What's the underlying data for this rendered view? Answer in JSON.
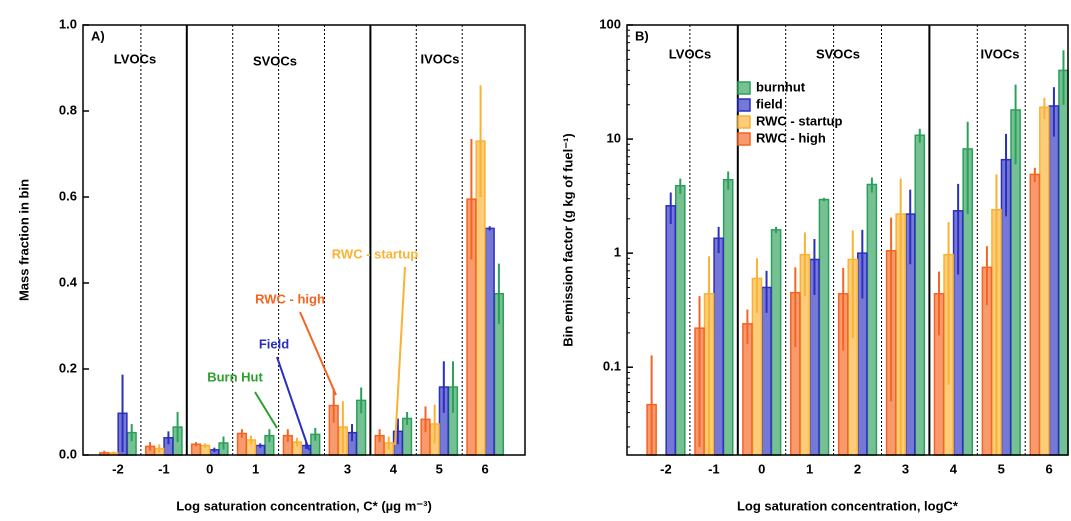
{
  "chart_data": [
    {
      "type": "bar",
      "panel_label": "A)",
      "xlabel": "Log saturation concentration, C* (µg m⁻³)",
      "ylabel": "Mass fraction in bin",
      "categories": [
        "-2",
        "-1",
        "0",
        "1",
        "2",
        "3",
        "4",
        "5",
        "6"
      ],
      "series": [
        {
          "color": "#2ca05a",
          "values": [
            0.052,
            0.065,
            0.028,
            0.045,
            0.048,
            0.127,
            0.085,
            0.158,
            0.375
          ],
          "errors": [
            0.02,
            0.035,
            0.015,
            0.015,
            0.015,
            0.03,
            0.015,
            0.06,
            0.07
          ]
        },
        {
          "color": "#2b2fbf",
          "values": [
            0.097,
            0.04,
            0.012,
            0.022,
            0.022,
            0.052,
            0.055,
            0.158,
            0.527
          ],
          "errors": [
            0.09,
            0.015,
            0.005,
            0.005,
            0.008,
            0.02,
            0.03,
            0.06,
            0.005
          ]
        },
        {
          "color": "#f9b233",
          "values": [
            0.005,
            0.015,
            0.022,
            0.035,
            0.03,
            0.065,
            0.028,
            0.072,
            0.73
          ],
          "errors": [
            0.003,
            0.01,
            0.005,
            0.01,
            0.01,
            0.06,
            0.015,
            0.045,
            0.13
          ]
        },
        {
          "color": "#f26522",
          "values": [
            0.005,
            0.02,
            0.025,
            0.05,
            0.045,
            0.115,
            0.045,
            0.083,
            0.595
          ],
          "errors": [
            0.005,
            0.01,
            0.005,
            0.01,
            0.015,
            0.04,
            0.015,
            0.03,
            0.14
          ]
        }
      ],
      "ylim": [
        0,
        1
      ],
      "yticks": [
        {
          "value": 0,
          "label": "0.0"
        },
        {
          "value": 0.2,
          "label": "0.2"
        },
        {
          "value": 0.4,
          "label": "0.4"
        },
        {
          "value": 0.6,
          "label": "0.6"
        },
        {
          "value": 0.8,
          "label": "0.8"
        },
        {
          "value": 1,
          "label": "1.0"
        }
      ],
      "log_scale": false,
      "class_labels": [
        "LVOCs",
        "SVOCs",
        "IVOCs"
      ],
      "annotations": [
        {
          "text": "Burn Hut",
          "color": "#2ca02c"
        },
        {
          "text": "Field",
          "color": "#2b2fbf"
        },
        {
          "text": "RWC - high",
          "color": "#f26522"
        },
        {
          "text": "RWC - startup",
          "color": "#f9b233"
        }
      ]
    },
    {
      "type": "bar",
      "panel_label": "B)",
      "xlabel": "Log saturation concentration, logC*",
      "ylabel": "Bin emission factor (g kg of fuel⁻¹)",
      "categories": [
        "-2",
        "-1",
        "0",
        "1",
        "2",
        "3",
        "4",
        "5",
        "6"
      ],
      "series": [
        {
          "name": "burnhut",
          "color": "#2ca05a",
          "values": [
            3.9,
            4.4,
            1.6,
            2.95,
            4.0,
            10.8,
            8.2,
            18,
            40
          ],
          "errors": [
            0.6,
            0.8,
            0.1,
            0.1,
            0.6,
            1.5,
            6,
            12,
            20
          ]
        },
        {
          "name": "field",
          "color": "#2b2fbf",
          "values": [
            2.6,
            1.35,
            0.5,
            0.88,
            1.0,
            2.2,
            2.35,
            6.6,
            19.5
          ],
          "errors": [
            0.8,
            0.35,
            0.2,
            0.45,
            0.6,
            1.4,
            1.7,
            4.5,
            9
          ]
        },
        {
          "name": "RWC - startup",
          "color": "#f9b233",
          "values": [
            null,
            0.44,
            0.6,
            0.97,
            0.88,
            2.2,
            0.97,
            2.4,
            19
          ],
          "errors": [
            null,
            0.5,
            0.3,
            0.55,
            0.7,
            2.3,
            0.9,
            2.5,
            4
          ]
        },
        {
          "name": "RWC - high",
          "color": "#f26522",
          "values": [
            0.047,
            0.22,
            0.24,
            0.45,
            0.44,
            1.05,
            0.44,
            0.75,
            4.9
          ],
          "errors": [
            0.08,
            0.2,
            0.08,
            0.3,
            0.3,
            1.0,
            0.25,
            0.4,
            0.7
          ]
        }
      ],
      "ylim": [
        0.017,
        100
      ],
      "yticks": [
        0.1,
        1,
        10,
        100
      ],
      "log_scale": true,
      "class_labels": [
        "LVOCs",
        "SVOCs",
        "IVOCs"
      ]
    }
  ]
}
